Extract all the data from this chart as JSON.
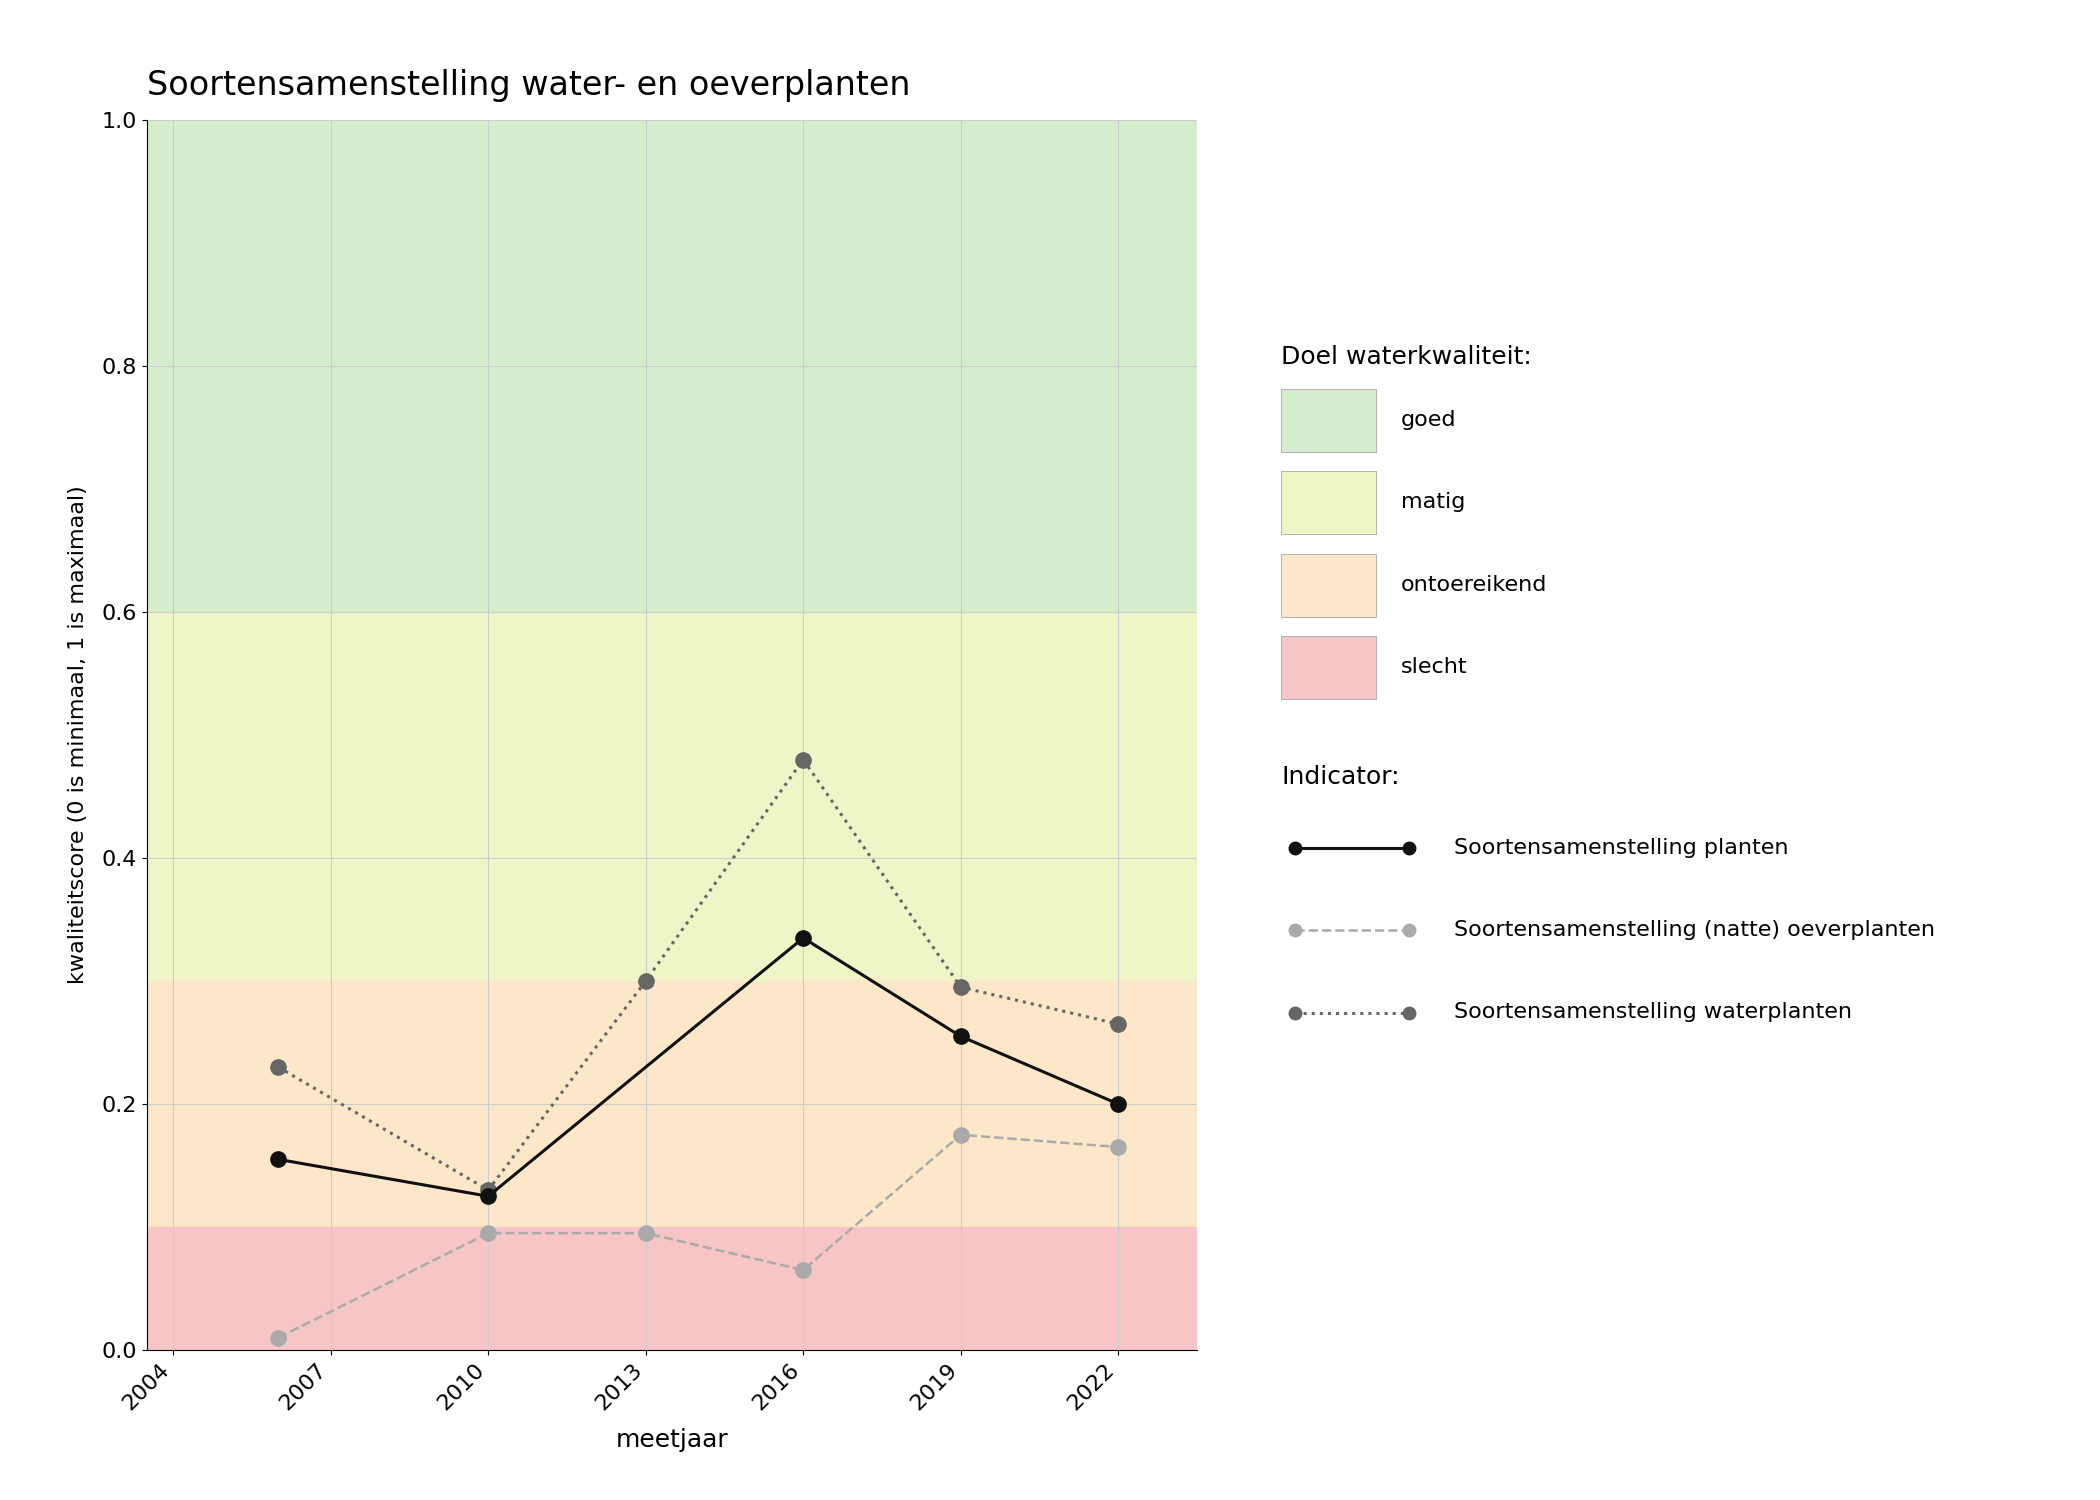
{
  "title": "Soortensamenstelling water- en oeverplanten",
  "xlabel": "meetjaar",
  "ylabel": "kwaliteitscore (0 is minimaal, 1 is maximaal)",
  "xlim": [
    2003.5,
    2023.5
  ],
  "ylim": [
    0.0,
    1.0
  ],
  "xticks": [
    2004,
    2007,
    2010,
    2013,
    2016,
    2019,
    2022
  ],
  "yticks": [
    0.0,
    0.2,
    0.4,
    0.6,
    0.8,
    1.0
  ],
  "bg_colors": [
    {
      "key": "goed",
      "color": "#d5edcc",
      "ymin": 0.6,
      "ymax": 1.0,
      "label": "goed"
    },
    {
      "key": "matig",
      "color": "#f0f5c8",
      "ymin": 0.3,
      "ymax": 0.6,
      "label": "matig"
    },
    {
      "key": "ontoereikend",
      "color": "#fce8c8",
      "ymin": 0.1,
      "ymax": 0.3,
      "label": "ontoereikend"
    },
    {
      "key": "slecht",
      "color": "#f7c5c5",
      "ymin": 0.0,
      "ymax": 0.1,
      "label": "slecht"
    }
  ],
  "series_planten": {
    "x": [
      2006,
      2010,
      2016,
      2019,
      2022
    ],
    "y": [
      0.155,
      0.125,
      0.335,
      0.255,
      0.2
    ],
    "color": "#111111",
    "linestyle": "solid",
    "linewidth": 2.2,
    "marker": "o",
    "markersize": 11,
    "label": "Soortensamenstelling planten"
  },
  "series_oeverplanten": {
    "x": [
      2006,
      2010,
      2013,
      2016,
      2019,
      2022
    ],
    "y": [
      0.01,
      0.095,
      0.095,
      0.065,
      0.175,
      0.165
    ],
    "color": "#aaaaaa",
    "linestyle": "dashed",
    "linewidth": 1.8,
    "marker": "o",
    "markersize": 11,
    "label": "Soortensamenstelling (natte) oeverplanten"
  },
  "series_waterplanten": {
    "x": [
      2006,
      2010,
      2013,
      2016,
      2019,
      2022
    ],
    "y": [
      0.23,
      0.13,
      0.3,
      0.48,
      0.295,
      0.265
    ],
    "color": "#666666",
    "linestyle": "dotted",
    "linewidth": 2.2,
    "marker": "o",
    "markersize": 11,
    "label": "Soortensamenstelling waterplanten"
  },
  "legend_title_kwal": "Doel waterkwaliteit:",
  "legend_title_ind": "Indicator:",
  "background_color": "#ffffff",
  "grid_color": "#cccccc",
  "fig_width": 21.0,
  "fig_height": 15.0
}
